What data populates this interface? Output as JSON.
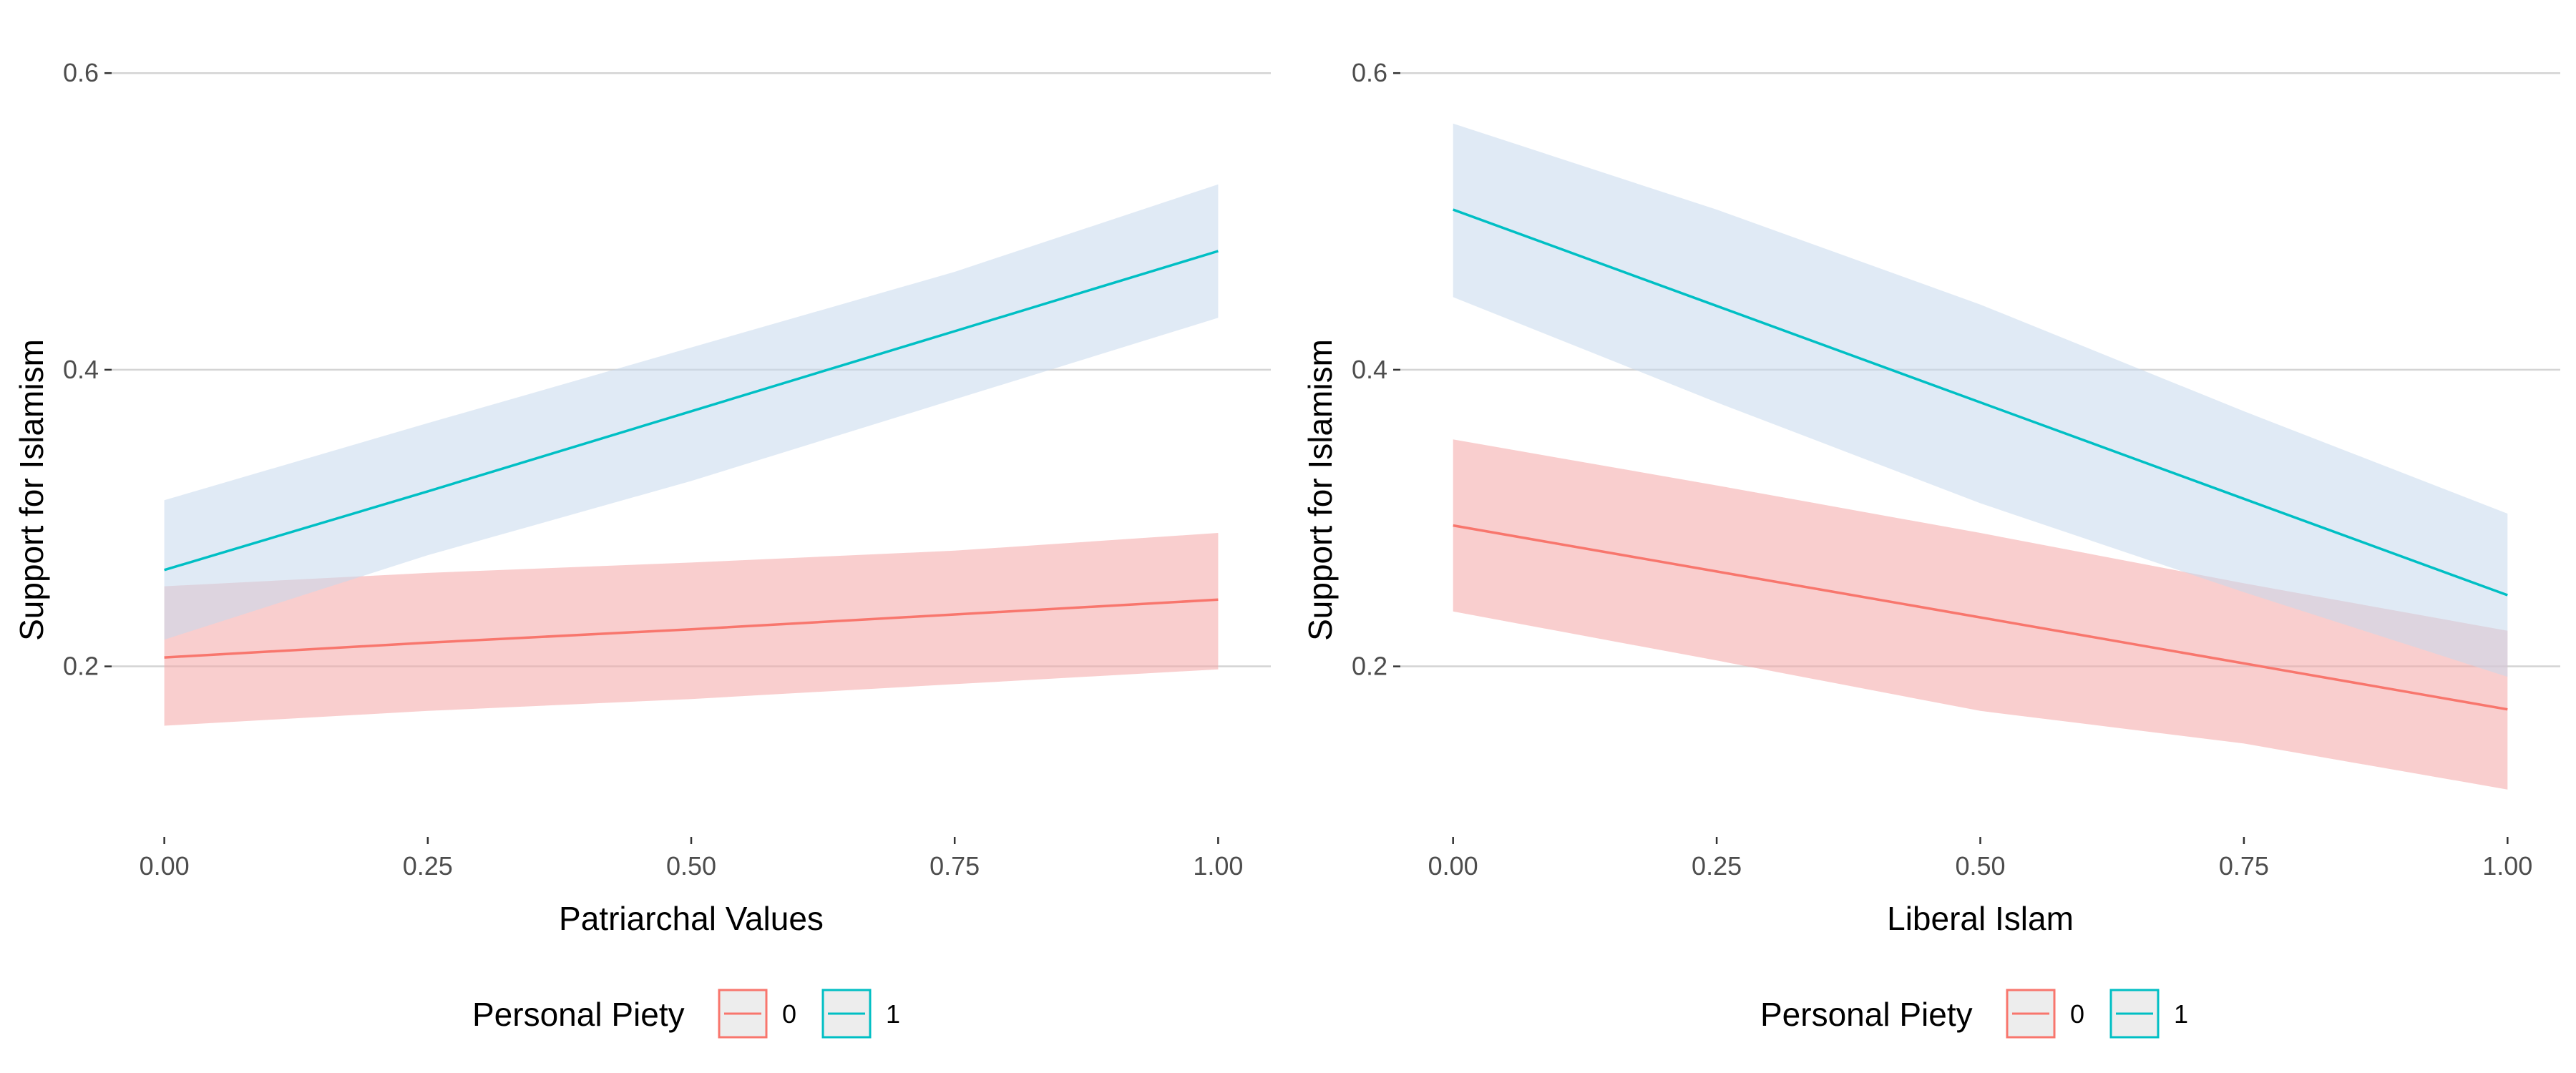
{
  "chart_data": [
    {
      "type": "line",
      "title": "",
      "xlabel": "Patriarchal Values",
      "ylabel": "Support for Islamism",
      "xlim": [
        -0.05,
        1.05
      ],
      "ylim": [
        0.085,
        0.63
      ],
      "x_ticks": [
        0,
        0.25,
        0.5,
        0.75,
        1
      ],
      "x_tick_labels": [
        "0.00",
        "0.25",
        "0.50",
        "0.75",
        "1.00"
      ],
      "y_ticks": [
        0.2,
        0.4,
        0.6
      ],
      "y_tick_labels": [
        "0.2",
        "0.4",
        "0.6"
      ],
      "grid": "horizontal major",
      "legend": {
        "title": "Personal Piety",
        "position": "bottom"
      },
      "series": [
        {
          "name": "0",
          "color": "#F8766D",
          "band_color": "#F4A6A6",
          "x": [
            0,
            0.25,
            0.5,
            0.75,
            1
          ],
          "y": [
            0.206,
            0.216,
            0.225,
            0.235,
            0.245
          ],
          "lower": [
            0.16,
            0.17,
            0.178,
            0.188,
            0.198
          ],
          "upper": [
            0.254,
            0.263,
            0.27,
            0.278,
            0.29
          ]
        },
        {
          "name": "1",
          "color": "#00BFC4",
          "band_color": "#C6D9EC",
          "x": [
            0,
            0.25,
            0.5,
            0.75,
            1
          ],
          "y": [
            0.265,
            0.318,
            0.372,
            0.426,
            0.48
          ],
          "lower": [
            0.218,
            0.275,
            0.325,
            0.38,
            0.435
          ],
          "upper": [
            0.312,
            0.364,
            0.415,
            0.466,
            0.525
          ]
        }
      ]
    },
    {
      "type": "line",
      "title": "",
      "xlabel": "Liberal Islam",
      "ylabel": "Support for Islamism",
      "xlim": [
        -0.05,
        1.05
      ],
      "ylim": [
        0.085,
        0.63
      ],
      "x_ticks": [
        0,
        0.25,
        0.5,
        0.75,
        1
      ],
      "x_tick_labels": [
        "0.00",
        "0.25",
        "0.50",
        "0.75",
        "1.00"
      ],
      "y_ticks": [
        0.2,
        0.4,
        0.6
      ],
      "y_tick_labels": [
        "0.2",
        "0.4",
        "0.6"
      ],
      "grid": "horizontal major",
      "legend": {
        "title": "Personal Piety",
        "position": "bottom"
      },
      "series": [
        {
          "name": "0",
          "color": "#F8766D",
          "band_color": "#F4A6A6",
          "x": [
            0,
            0.25,
            0.5,
            0.75,
            1
          ],
          "y": [
            0.295,
            0.264,
            0.233,
            0.202,
            0.171
          ],
          "lower": [
            0.237,
            0.204,
            0.17,
            0.148,
            0.117
          ],
          "upper": [
            0.353,
            0.322,
            0.29,
            0.256,
            0.224
          ]
        },
        {
          "name": "1",
          "color": "#00BFC4",
          "band_color": "#C6D9EC",
          "x": [
            0,
            0.25,
            0.5,
            0.75,
            1
          ],
          "y": [
            0.508,
            0.443,
            0.378,
            0.313,
            0.248
          ],
          "lower": [
            0.449,
            0.378,
            0.31,
            0.25,
            0.193
          ],
          "upper": [
            0.566,
            0.508,
            0.444,
            0.372,
            0.303
          ]
        }
      ]
    }
  ]
}
